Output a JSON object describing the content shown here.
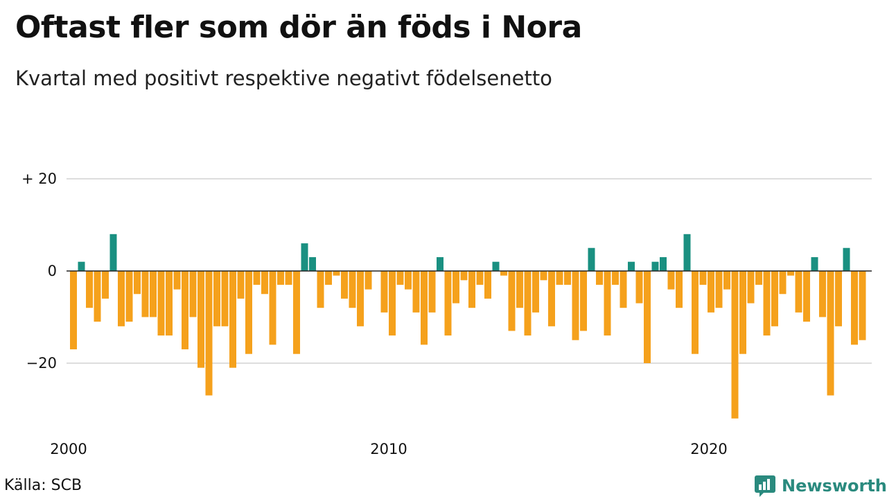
{
  "header": {
    "title": "Oftast fler som dör än föds i Nora",
    "subtitle": "Kvartal med positivt respektive negativt födelsenetto"
  },
  "footer": {
    "source": "Källa: SCB",
    "brand": "Newsworthy",
    "brand_icon": "bar-chart-speech-icon"
  },
  "colors": {
    "positive": "#1a9081",
    "negative": "#f5a11c",
    "grid": "#dddddd",
    "zero_line": "#222222",
    "brand": "#2a8a7e"
  },
  "chart_data": {
    "type": "bar",
    "title": "Oftast fler som dör än föds i Nora",
    "subtitle": "Kvartal med positivt respektive negativt födelsenetto",
    "ylim": [
      -32,
      20
    ],
    "y_ticks": [
      {
        "value": 20,
        "label": "+ 20"
      },
      {
        "value": 0,
        "label": "0"
      },
      {
        "value": -20,
        "label": "−20"
      }
    ],
    "x_ticks": [
      {
        "value": 2000,
        "label": "2000"
      },
      {
        "value": 2010,
        "label": "2010"
      },
      {
        "value": 2020,
        "label": "2020"
      }
    ],
    "x_start": 2000,
    "periods_per_year": 4,
    "grid": true,
    "values": [
      -17,
      2,
      -8,
      -11,
      -6,
      8,
      -12,
      -11,
      -5,
      -10,
      -10,
      -14,
      -14,
      -4,
      -17,
      -10,
      -21,
      -27,
      -12,
      -12,
      -21,
      -6,
      -18,
      -3,
      -5,
      -16,
      -3,
      -3,
      -18,
      6,
      3,
      -8,
      -3,
      -1,
      -6,
      -8,
      -12,
      -4,
      0,
      -9,
      -14,
      -3,
      -4,
      -9,
      -16,
      -9,
      3,
      -14,
      -7,
      -2,
      -8,
      -3,
      -6,
      2,
      -1,
      -13,
      -8,
      -14,
      -9,
      -2,
      -12,
      -3,
      -3,
      -15,
      -13,
      5,
      -3,
      -14,
      -3,
      -8,
      2,
      -7,
      -20,
      2,
      3,
      -4,
      -8,
      8,
      -18,
      -3,
      -9,
      -8,
      -4,
      -32,
      -18,
      -7,
      -3,
      -14,
      -12,
      -5,
      -1,
      -9,
      -11,
      3,
      -10,
      -27,
      -12,
      5,
      -16,
      -15
    ]
  }
}
